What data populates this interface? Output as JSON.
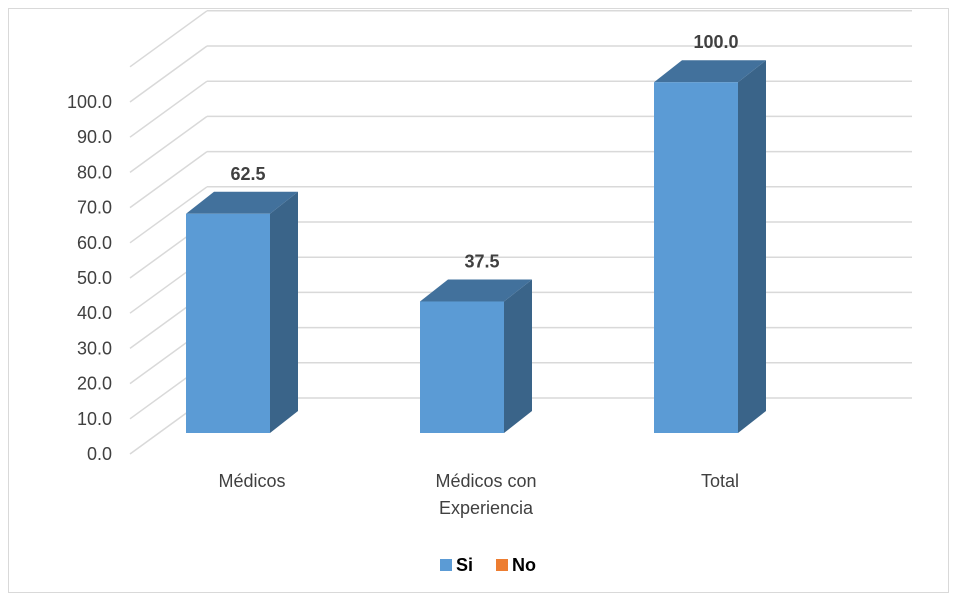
{
  "chart_data": {
    "type": "bar",
    "categories": [
      "Médicos",
      "Médicos con Experiencia",
      "Total"
    ],
    "category_lines": [
      [
        "Médicos"
      ],
      [
        "Médicos con",
        "Experiencia"
      ],
      [
        "Total"
      ]
    ],
    "series": [
      {
        "name": "Si",
        "values": [
          62.5,
          37.5,
          100.0
        ],
        "color": "#5b9bd5"
      },
      {
        "name": "No",
        "values": [
          0,
          0,
          0
        ],
        "color": "#ed7d31"
      }
    ],
    "data_labels": [
      "62.5",
      "37.5",
      "100.0"
    ],
    "yticks": [
      "0.0",
      "10.0",
      "20.0",
      "30.0",
      "40.0",
      "50.0",
      "60.0",
      "70.0",
      "80.0",
      "90.0",
      "100.0"
    ],
    "ylim": [
      0,
      100
    ],
    "title": "",
    "xlabel": "",
    "ylabel": "",
    "grid": true,
    "legend": "bottom",
    "three_d": true
  }
}
